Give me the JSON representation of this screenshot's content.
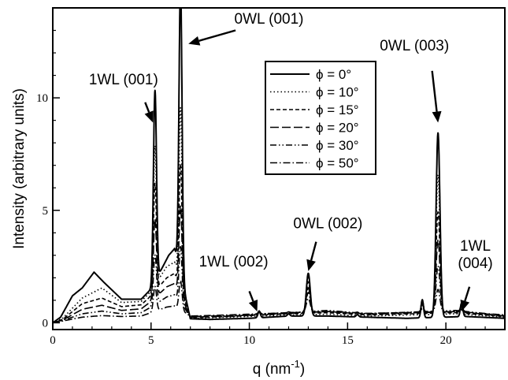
{
  "chart_data": {
    "type": "line",
    "xlabel_base": "q (nm",
    "xlabel_sup": "-1",
    "xlabel_end": ")",
    "ylabel": "Intensity (arbitrary units)",
    "xlim": [
      0,
      23
    ],
    "ylim": [
      -0.3,
      14
    ],
    "x_ticks": [
      0,
      5,
      10,
      15,
      20
    ],
    "y_ticks": [
      0,
      5,
      10
    ],
    "legend_position": "upper-middle",
    "series": [
      {
        "name": "ϕ =   0°",
        "dash": "",
        "width": 2.0,
        "peaks": [
          [
            5.2,
            8.5
          ],
          [
            6.5,
            12.9
          ],
          [
            13.0,
            1.9
          ],
          [
            19.6,
            8.2
          ]
        ],
        "baseline": [
          [
            0.0,
            0.0
          ],
          [
            0.4,
            0.25
          ],
          [
            1.0,
            1.2
          ],
          [
            1.5,
            1.55
          ],
          [
            2.1,
            2.25
          ],
          [
            2.6,
            1.8
          ],
          [
            3.5,
            1.05
          ],
          [
            4.5,
            1.05
          ],
          [
            5.0,
            1.5
          ],
          [
            5.9,
            3.0
          ],
          [
            6.2,
            3.3
          ],
          [
            7.0,
            0.18
          ],
          [
            8.0,
            0.15
          ],
          [
            10.0,
            0.2
          ],
          [
            11.0,
            0.25
          ],
          [
            12.0,
            0.3
          ],
          [
            14.0,
            0.3
          ],
          [
            18.0,
            0.2
          ],
          [
            21.0,
            0.28
          ],
          [
            23.0,
            0.2
          ]
        ]
      },
      {
        "name": "ϕ = 10°",
        "dash": "1.5,3",
        "width": 1.6,
        "peaks": [
          [
            5.2,
            6.2
          ],
          [
            6.5,
            7.8
          ],
          [
            13.0,
            1.7
          ],
          [
            19.6,
            6.2
          ]
        ],
        "baseline": [
          [
            0.0,
            0.0
          ],
          [
            0.5,
            0.2
          ],
          [
            1.5,
            1.1
          ],
          [
            2.5,
            1.55
          ],
          [
            3.5,
            0.9
          ],
          [
            4.5,
            0.95
          ],
          [
            5.0,
            1.4
          ],
          [
            5.8,
            2.5
          ],
          [
            6.2,
            2.7
          ],
          [
            7.0,
            0.2
          ],
          [
            9.0,
            0.25
          ],
          [
            12.0,
            0.35
          ],
          [
            14.0,
            0.38
          ],
          [
            16.0,
            0.3
          ],
          [
            20.5,
            0.4
          ],
          [
            23.0,
            0.25
          ]
        ]
      },
      {
        "name": "ϕ = 15°",
        "dash": "5,3",
        "width": 1.6,
        "peaks": [
          [
            5.2,
            4.8
          ],
          [
            6.5,
            5.6
          ],
          [
            13.0,
            1.4
          ],
          [
            19.6,
            4.5
          ]
        ],
        "baseline": [
          [
            0.0,
            0.0
          ],
          [
            0.5,
            0.15
          ],
          [
            1.5,
            0.85
          ],
          [
            2.5,
            1.1
          ],
          [
            3.5,
            0.72
          ],
          [
            4.5,
            0.8
          ],
          [
            5.0,
            1.2
          ],
          [
            5.8,
            2.0
          ],
          [
            6.2,
            2.2
          ],
          [
            7.0,
            0.22
          ],
          [
            9.0,
            0.28
          ],
          [
            12.0,
            0.4
          ],
          [
            14.0,
            0.45
          ],
          [
            16.0,
            0.35
          ],
          [
            20.5,
            0.45
          ],
          [
            23.0,
            0.28
          ]
        ]
      },
      {
        "name": "ϕ = 20°",
        "dash": "11,4",
        "width": 1.6,
        "peaks": [
          [
            5.2,
            3.5
          ],
          [
            6.5,
            4.0
          ],
          [
            13.0,
            1.1
          ],
          [
            19.6,
            3.2
          ]
        ],
        "baseline": [
          [
            0.0,
            0.0
          ],
          [
            0.5,
            0.12
          ],
          [
            1.5,
            0.6
          ],
          [
            2.5,
            0.78
          ],
          [
            3.5,
            0.55
          ],
          [
            4.5,
            0.62
          ],
          [
            5.0,
            0.95
          ],
          [
            5.8,
            1.6
          ],
          [
            6.2,
            1.75
          ],
          [
            7.0,
            0.25
          ],
          [
            9.0,
            0.3
          ],
          [
            12.0,
            0.42
          ],
          [
            14.0,
            0.5
          ],
          [
            16.0,
            0.38
          ],
          [
            20.5,
            0.5
          ],
          [
            23.0,
            0.3
          ]
        ]
      },
      {
        "name": "ϕ = 30°",
        "dash": "8,3,1.5,3,1.5,3",
        "width": 1.6,
        "peaks": [
          [
            5.2,
            2.2
          ],
          [
            6.5,
            2.5
          ],
          [
            13.0,
            0.85
          ],
          [
            19.6,
            2.0
          ]
        ],
        "baseline": [
          [
            0.0,
            0.0
          ],
          [
            0.5,
            0.1
          ],
          [
            1.5,
            0.4
          ],
          [
            2.5,
            0.52
          ],
          [
            3.5,
            0.4
          ],
          [
            4.5,
            0.45
          ],
          [
            5.0,
            0.7
          ],
          [
            5.8,
            1.15
          ],
          [
            6.2,
            1.25
          ],
          [
            7.0,
            0.28
          ],
          [
            9.0,
            0.32
          ],
          [
            12.0,
            0.45
          ],
          [
            14.0,
            0.55
          ],
          [
            16.0,
            0.4
          ],
          [
            20.5,
            0.55
          ],
          [
            23.0,
            0.32
          ]
        ]
      },
      {
        "name": "ϕ = 50°",
        "dash": "9,3,1.5,3",
        "width": 1.6,
        "peaks": [
          [
            5.2,
            1.1
          ],
          [
            6.5,
            1.3
          ],
          [
            13.0,
            0.6
          ],
          [
            19.6,
            1.0
          ]
        ],
        "baseline": [
          [
            0.0,
            0.0
          ],
          [
            0.5,
            0.08
          ],
          [
            1.5,
            0.25
          ],
          [
            2.5,
            0.32
          ],
          [
            3.5,
            0.28
          ],
          [
            4.5,
            0.3
          ],
          [
            5.0,
            0.45
          ],
          [
            5.8,
            0.7
          ],
          [
            6.2,
            0.75
          ],
          [
            7.0,
            0.3
          ],
          [
            9.0,
            0.35
          ],
          [
            12.0,
            0.45
          ],
          [
            14.0,
            0.5
          ],
          [
            16.0,
            0.42
          ],
          [
            20.5,
            0.5
          ],
          [
            23.0,
            0.35
          ]
        ]
      }
    ],
    "annotations": [
      {
        "lines": [
          "0WL (001)"
        ],
        "text_x": 11.0,
        "text_y": 13.3,
        "arrow_from": [
          9.3,
          13.0
        ],
        "arrow_to": [
          6.9,
          12.4
        ]
      },
      {
        "lines": [
          "1WL (001)"
        ],
        "text_x": 3.6,
        "text_y": 10.6,
        "arrow_from": [
          4.7,
          9.8
        ],
        "arrow_to": [
          5.1,
          8.9
        ]
      },
      {
        "lines": [
          "0WL (003)"
        ],
        "text_x": 18.4,
        "text_y": 12.1,
        "arrow_from": [
          19.3,
          11.2
        ],
        "arrow_to": [
          19.6,
          8.9
        ]
      },
      {
        "lines": [
          "0WL (002)"
        ],
        "text_x": 14.0,
        "text_y": 4.2,
        "arrow_from": [
          13.4,
          3.6
        ],
        "arrow_to": [
          13.0,
          2.3
        ]
      },
      {
        "lines": [
          "1WL (002)"
        ],
        "text_x": 9.2,
        "text_y": 2.5,
        "arrow_from": [
          10.0,
          1.4
        ],
        "arrow_to": [
          10.4,
          0.5
        ]
      },
      {
        "lines": [
          "1WL",
          "(004)"
        ],
        "text_x": 21.5,
        "text_y": 3.2,
        "arrow_from": [
          21.2,
          1.6
        ],
        "arrow_to": [
          20.8,
          0.5
        ]
      }
    ],
    "small_peaks": [
      [
        10.5,
        0.28
      ],
      [
        12.0,
        0.1
      ],
      [
        15.5,
        0.1
      ],
      [
        18.8,
        0.8
      ],
      [
        20.8,
        0.6
      ]
    ]
  }
}
